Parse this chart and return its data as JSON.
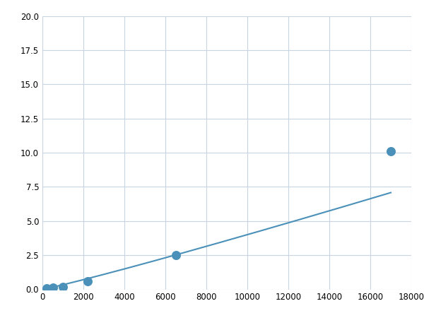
{
  "x_data": [
    200,
    500,
    1000,
    2200,
    6500,
    17000
  ],
  "y_data": [
    0.1,
    0.15,
    0.2,
    0.6,
    2.5,
    10.1
  ],
  "line_color": "#4a90b8",
  "marker_color": "#4a90b8",
  "marker_size": 5,
  "xlim": [
    0,
    18000
  ],
  "ylim": [
    0,
    20.0
  ],
  "xticks": [
    0,
    2000,
    4000,
    6000,
    8000,
    10000,
    12000,
    14000,
    16000,
    18000
  ],
  "yticks": [
    0.0,
    2.5,
    5.0,
    7.5,
    10.0,
    12.5,
    15.0,
    17.5,
    20.0
  ],
  "grid_color": "#c8d4e0",
  "background_color": "#ffffff",
  "figure_background": "#ffffff"
}
